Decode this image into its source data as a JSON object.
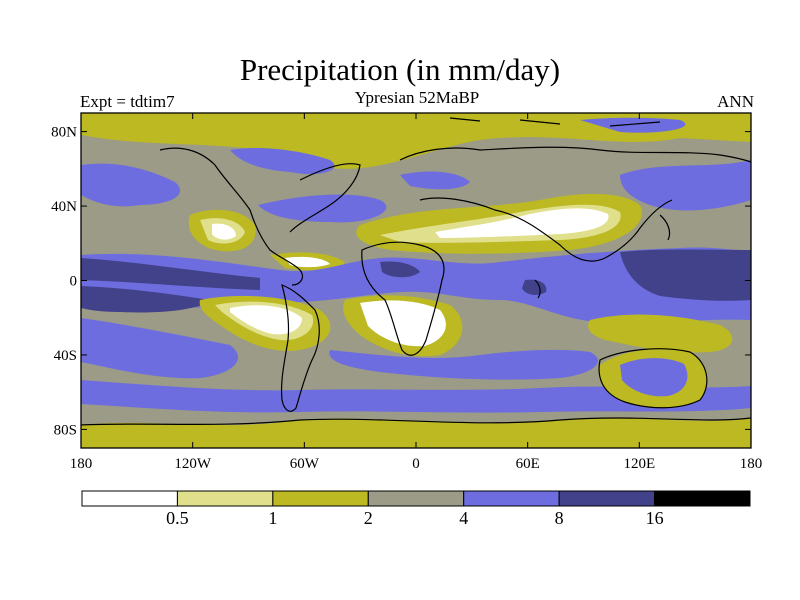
{
  "title": "Precipitation (in mm/day)",
  "subtitle": "Ypresian  52MaBP",
  "left_label": "Expt = tdtim7",
  "right_label": "ANN",
  "map": {
    "projection": "cylindrical-equidistant",
    "lon_range": [
      -180,
      180
    ],
    "lat_range": [
      -90,
      90
    ],
    "lon_ticks": [
      {
        "value": -180,
        "label": "180"
      },
      {
        "value": -120,
        "label": "120W"
      },
      {
        "value": -60,
        "label": "60W"
      },
      {
        "value": 0,
        "label": "0"
      },
      {
        "value": 60,
        "label": "60E"
      },
      {
        "value": 120,
        "label": "120E"
      },
      {
        "value": 180,
        "label": "180"
      }
    ],
    "lat_ticks": [
      {
        "value": 80,
        "label": "80N"
      },
      {
        "value": 40,
        "label": "40N"
      },
      {
        "value": 0,
        "label": "0"
      },
      {
        "value": -40,
        "label": "40S"
      },
      {
        "value": -80,
        "label": "80S"
      }
    ]
  },
  "colorbar": {
    "colors": [
      "#ffffff",
      "#e0e08c",
      "#bcb922",
      "#9b9b87",
      "#6d6de0",
      "#42428a",
      "#000000"
    ],
    "labels": [
      "0.5",
      "1",
      "2",
      "4",
      "8",
      "16"
    ]
  }
}
